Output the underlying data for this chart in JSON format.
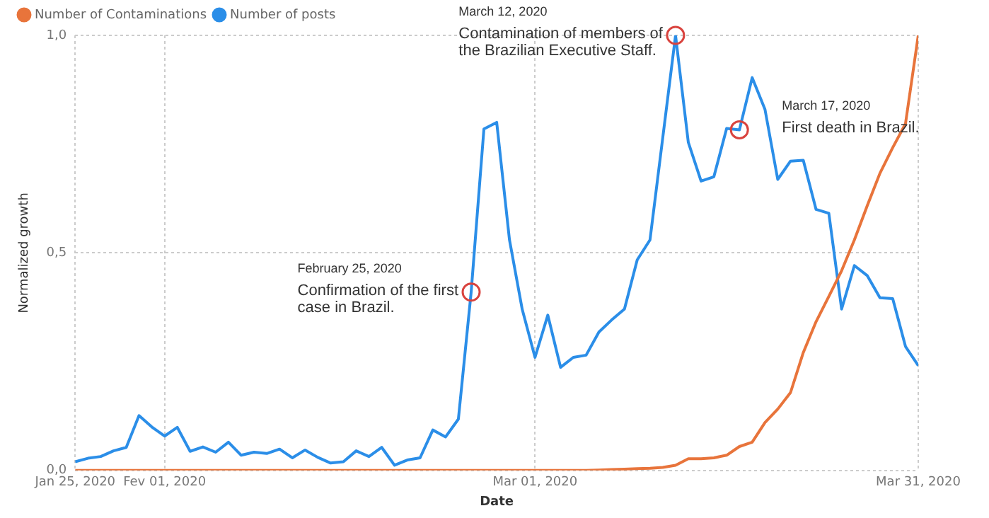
{
  "chart_data": {
    "type": "line",
    "xlabel": "Date",
    "ylabel": "Normalized growth",
    "x": [
      "2020-01-25",
      "2020-01-26",
      "2020-01-27",
      "2020-01-28",
      "2020-01-29",
      "2020-01-30",
      "2020-01-31",
      "2020-02-01",
      "2020-02-02",
      "2020-02-03",
      "2020-02-04",
      "2020-02-05",
      "2020-02-06",
      "2020-02-07",
      "2020-02-08",
      "2020-02-09",
      "2020-02-10",
      "2020-02-11",
      "2020-02-12",
      "2020-02-13",
      "2020-02-14",
      "2020-02-15",
      "2020-02-16",
      "2020-02-17",
      "2020-02-18",
      "2020-02-19",
      "2020-02-20",
      "2020-02-21",
      "2020-02-22",
      "2020-02-23",
      "2020-02-24",
      "2020-02-25",
      "2020-02-26",
      "2020-02-27",
      "2020-02-28",
      "2020-02-29",
      "2020-03-01",
      "2020-03-02",
      "2020-03-03",
      "2020-03-04",
      "2020-03-05",
      "2020-03-06",
      "2020-03-07",
      "2020-03-08",
      "2020-03-09",
      "2020-03-10",
      "2020-03-11",
      "2020-03-12",
      "2020-03-13",
      "2020-03-14",
      "2020-03-15",
      "2020-03-16",
      "2020-03-17",
      "2020-03-18",
      "2020-03-19",
      "2020-03-20",
      "2020-03-21",
      "2020-03-22",
      "2020-03-23",
      "2020-03-24",
      "2020-03-25",
      "2020-03-26",
      "2020-03-27",
      "2020-03-28",
      "2020-03-29",
      "2020-03-30",
      "2020-03-31"
    ],
    "series": [
      {
        "name": "Number of Contaminations",
        "color": "#e8743b",
        "values": [
          0,
          0,
          0,
          0,
          0,
          0,
          0,
          0,
          0,
          0,
          0,
          0,
          0,
          0,
          0,
          0,
          0,
          0,
          0,
          0,
          0,
          0,
          0,
          0,
          0,
          0,
          0,
          0,
          0,
          0,
          0,
          0,
          0,
          0,
          0,
          0,
          0,
          0,
          0,
          0,
          0,
          0.001,
          0.002,
          0.003,
          0.004,
          0.005,
          0.007,
          0.012,
          0.027,
          0.027,
          0.029,
          0.035,
          0.055,
          0.065,
          0.11,
          0.141,
          0.179,
          0.271,
          0.342,
          0.4,
          0.459,
          0.53,
          0.608,
          0.683,
          0.742,
          0.797,
          1.0
        ]
      },
      {
        "name": "Number of posts",
        "color": "#2b8ee8",
        "values": [
          0.02,
          0.028,
          0.032,
          0.045,
          0.053,
          0.126,
          0.1,
          0.079,
          0.099,
          0.044,
          0.054,
          0.042,
          0.065,
          0.035,
          0.042,
          0.039,
          0.049,
          0.029,
          0.047,
          0.03,
          0.017,
          0.02,
          0.045,
          0.032,
          0.053,
          0.012,
          0.024,
          0.029,
          0.093,
          0.077,
          0.118,
          0.41,
          0.785,
          0.8,
          0.53,
          0.37,
          0.26,
          0.357,
          0.237,
          0.26,
          0.265,
          0.318,
          0.346,
          0.371,
          0.484,
          0.53,
          0.765,
          1.0,
          0.754,
          0.665,
          0.675,
          0.786,
          0.783,
          0.903,
          0.83,
          0.669,
          0.711,
          0.713,
          0.6,
          0.591,
          0.371,
          0.471,
          0.448,
          0.397,
          0.395,
          0.285,
          0.241
        ]
      }
    ],
    "xlim": [
      "2020-01-25",
      "2020-03-31"
    ],
    "xticks": [
      {
        "value": "2020-01-25",
        "label": "Jan 25, 2020"
      },
      {
        "value": "2020-02-01",
        "label": "Fev 01, 2020"
      },
      {
        "value": "2020-03-01",
        "label": "Mar 01, 2020"
      },
      {
        "value": "2020-03-31",
        "label": "Mar 31, 2020"
      }
    ],
    "ylim": [
      0,
      1
    ],
    "yticks": [
      {
        "value": 0,
        "label": "0,0"
      },
      {
        "value": 0.5,
        "label": "0,5"
      },
      {
        "value": 1,
        "label": "1,0"
      }
    ],
    "grid": true,
    "legend": "top left",
    "marker": "none",
    "line_style": "solid",
    "annotations": [
      {
        "text": "February 25, 2020\nConfirmation of the first\ncase in Brazil.",
        "x": "2020-02-25",
        "y": 0.41
      },
      {
        "text": "March 12, 2020\nContamination of members of\nthe Brazilian Executive Staff.",
        "x": "2020-03-12",
        "y": 1.0
      },
      {
        "text": "March 17, 2020\nFirst death in Brazil.",
        "x": "2020-03-17",
        "y": 0.783
      }
    ]
  }
}
